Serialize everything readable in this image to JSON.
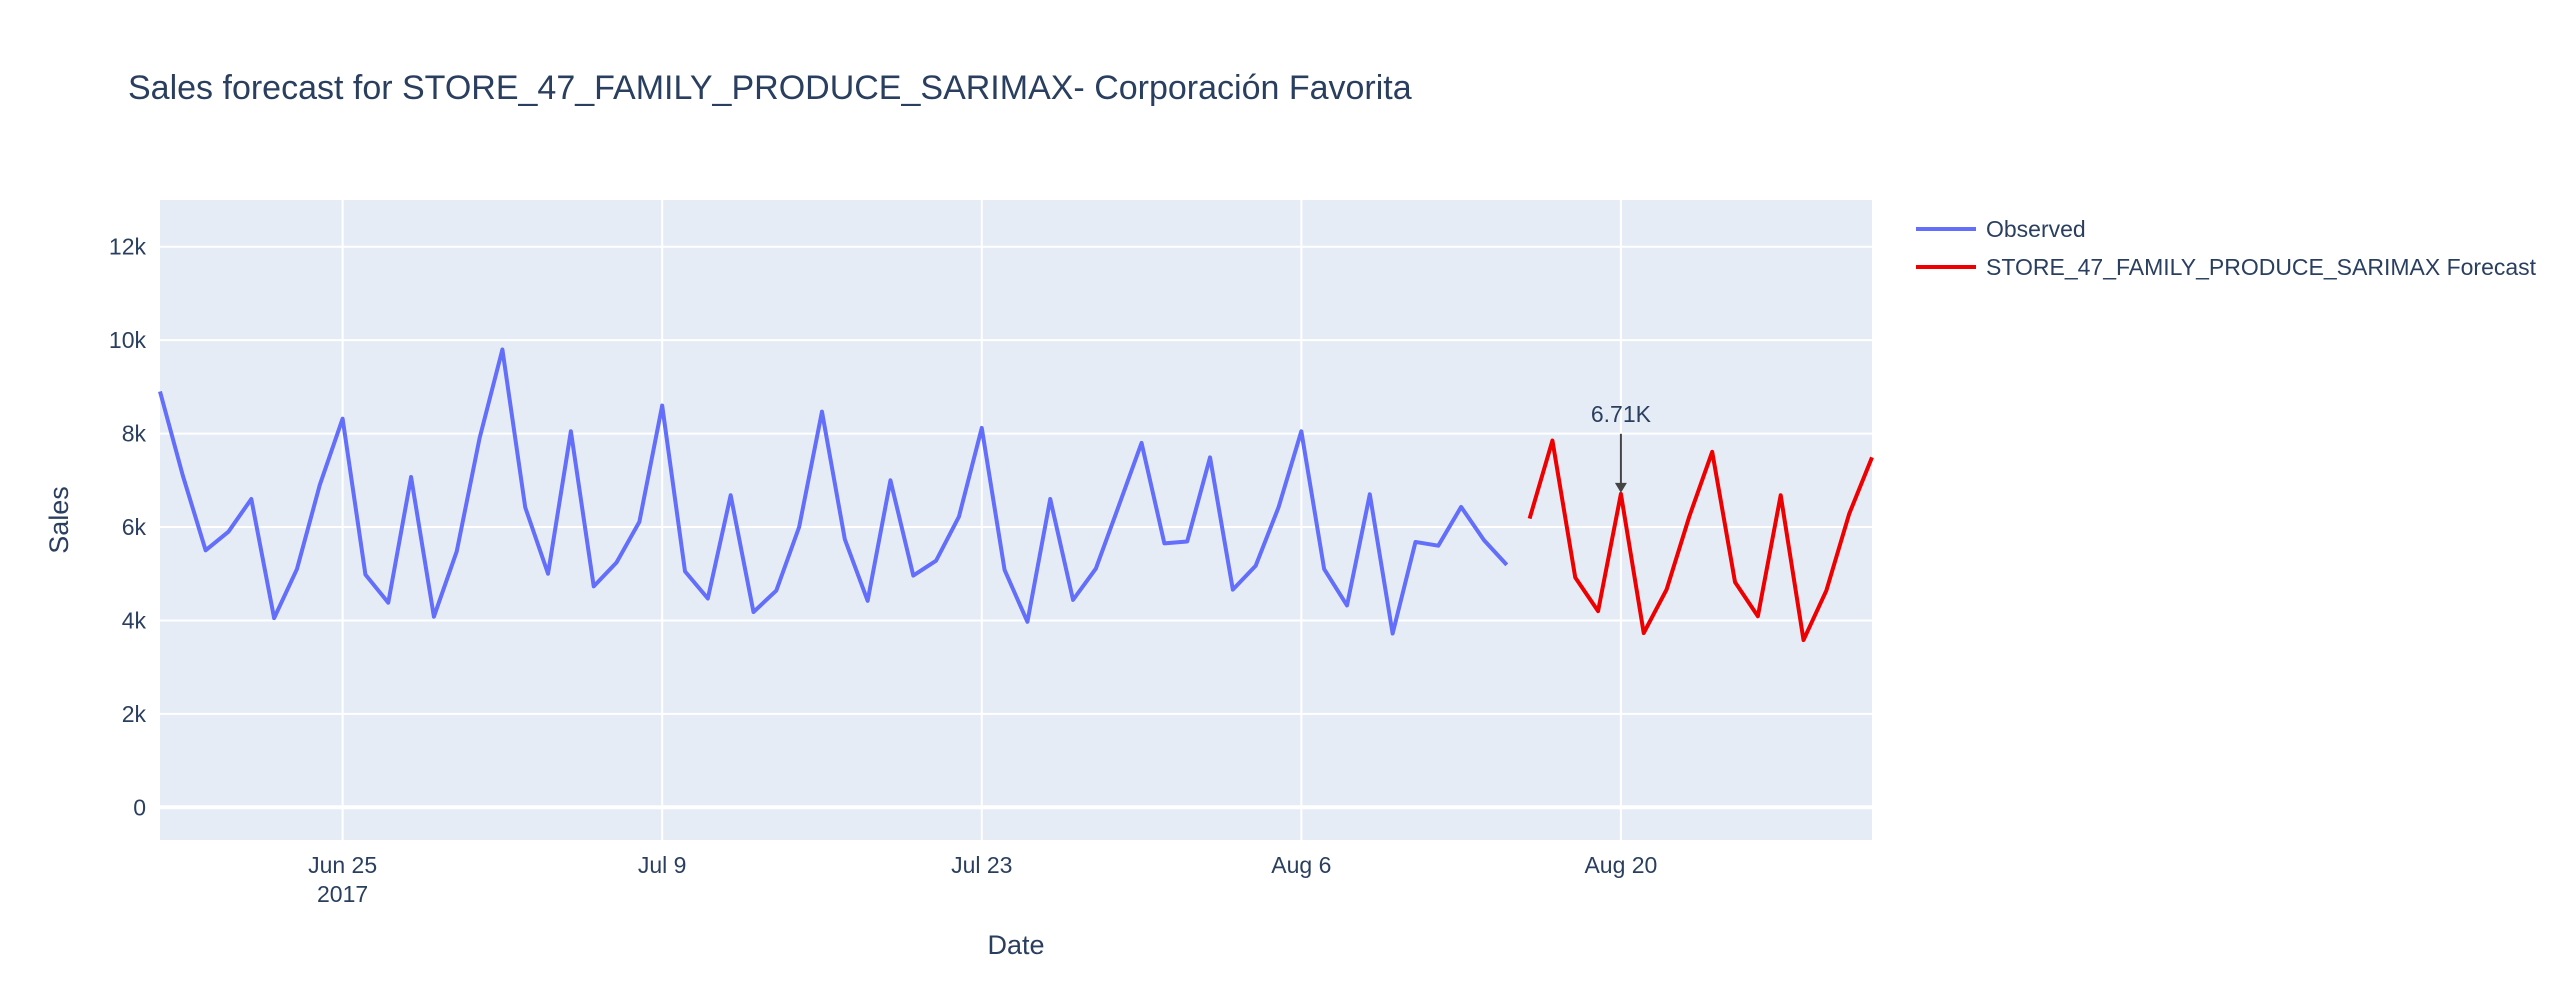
{
  "chart_data": {
    "type": "line",
    "title": "Sales forecast for STORE_47_FAMILY_PRODUCE_SARIMAX- Corporación Favorita",
    "xlabel": "Date",
    "ylabel": "Sales",
    "xlim": [
      "2017-06-17",
      "2017-08-31"
    ],
    "ylim": [
      -700,
      13000
    ],
    "x_ticks": [
      {
        "date": "2017-06-25",
        "label": "Jun 25",
        "sublabel": "2017"
      },
      {
        "date": "2017-07-09",
        "label": "Jul 9",
        "sublabel": ""
      },
      {
        "date": "2017-07-23",
        "label": "Jul 23",
        "sublabel": ""
      },
      {
        "date": "2017-08-06",
        "label": "Aug 6",
        "sublabel": ""
      },
      {
        "date": "2017-08-20",
        "label": "Aug 20",
        "sublabel": ""
      }
    ],
    "y_ticks": [
      {
        "value": 0,
        "label": "0"
      },
      {
        "value": 2000,
        "label": "2k"
      },
      {
        "value": 4000,
        "label": "4k"
      },
      {
        "value": 6000,
        "label": "6k"
      },
      {
        "value": 8000,
        "label": "8k"
      },
      {
        "value": 10000,
        "label": "10k"
      },
      {
        "value": 12000,
        "label": "12k"
      }
    ],
    "grid": true,
    "legend_position": "top-right, outside plot",
    "series": [
      {
        "name": "Observed",
        "color": "#636efa",
        "x": [
          "2017-06-17",
          "2017-06-18",
          "2017-06-19",
          "2017-06-20",
          "2017-06-21",
          "2017-06-22",
          "2017-06-23",
          "2017-06-24",
          "2017-06-25",
          "2017-06-26",
          "2017-06-27",
          "2017-06-28",
          "2017-06-29",
          "2017-06-30",
          "2017-07-01",
          "2017-07-02",
          "2017-07-03",
          "2017-07-04",
          "2017-07-05",
          "2017-07-06",
          "2017-07-07",
          "2017-07-08",
          "2017-07-09",
          "2017-07-10",
          "2017-07-11",
          "2017-07-12",
          "2017-07-13",
          "2017-07-14",
          "2017-07-15",
          "2017-07-16",
          "2017-07-17",
          "2017-07-18",
          "2017-07-19",
          "2017-07-20",
          "2017-07-21",
          "2017-07-22",
          "2017-07-23",
          "2017-07-24",
          "2017-07-25",
          "2017-07-26",
          "2017-07-27",
          "2017-07-28",
          "2017-07-29",
          "2017-07-30",
          "2017-07-31",
          "2017-08-01",
          "2017-08-02",
          "2017-08-03",
          "2017-08-04",
          "2017-08-05",
          "2017-08-06",
          "2017-08-07",
          "2017-08-08",
          "2017-08-09",
          "2017-08-10",
          "2017-08-11",
          "2017-08-12",
          "2017-08-13",
          "2017-08-14",
          "2017-08-15"
        ],
        "values": [
          8900,
          7100,
          5500,
          5900,
          6600,
          4050,
          5100,
          6900,
          8320,
          4980,
          4380,
          7070,
          4080,
          5480,
          7900,
          9800,
          6420,
          5000,
          8050,
          4730,
          5240,
          6110,
          8600,
          5050,
          4470,
          6680,
          4180,
          4640,
          6000,
          8470,
          5740,
          4420,
          7000,
          4960,
          5280,
          6220,
          8120,
          5080,
          3970,
          6600,
          4440,
          5110,
          6450,
          7800,
          5650,
          5690,
          7490,
          4660,
          5170,
          6420,
          8050,
          5100,
          4320,
          6700,
          3720,
          5680,
          5600,
          6430,
          5720,
          5190
        ]
      },
      {
        "name": "STORE_47_FAMILY_PRODUCE_SARIMAX Forecast",
        "color": "#ee0000",
        "x": [
          "2017-08-16",
          "2017-08-17",
          "2017-08-18",
          "2017-08-19",
          "2017-08-20",
          "2017-08-21",
          "2017-08-22",
          "2017-08-23",
          "2017-08-24",
          "2017-08-25",
          "2017-08-26",
          "2017-08-27",
          "2017-08-28",
          "2017-08-29",
          "2017-08-30",
          "2017-08-31"
        ],
        "values": [
          6180,
          7850,
          4920,
          4200,
          6710,
          3730,
          4660,
          6230,
          7610,
          4820,
          4090,
          6680,
          3580,
          4640,
          6280,
          7490
        ]
      }
    ],
    "annotations": [
      {
        "x": "2017-08-20",
        "y": 6710,
        "text": "6.71K"
      }
    ]
  }
}
